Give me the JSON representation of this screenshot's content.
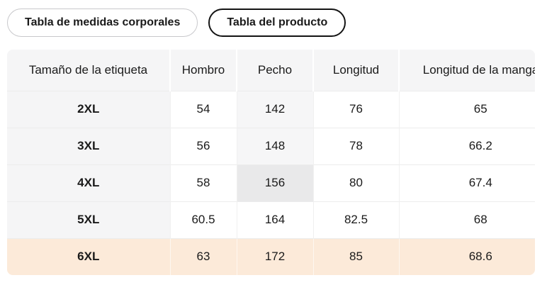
{
  "tabs": [
    {
      "label": "Tabla de medidas corporales",
      "selected": false
    },
    {
      "label": "Tabla del producto",
      "selected": true
    }
  ],
  "size_table": {
    "columns": [
      "Tamaño de la etiqueta",
      "Hombro",
      "Pecho",
      "Longitud",
      "Longitud de la manga"
    ],
    "rows": [
      {
        "size": "2XL",
        "hombro": "54",
        "pecho": "142",
        "longitud": "76",
        "longitud_manga": "65"
      },
      {
        "size": "3XL",
        "hombro": "56",
        "pecho": "148",
        "longitud": "78",
        "longitud_manga": "66.2"
      },
      {
        "size": "4XL",
        "hombro": "58",
        "pecho": "156",
        "longitud": "80",
        "longitud_manga": "67.4"
      },
      {
        "size": "5XL",
        "hombro": "60.5",
        "pecho": "164",
        "longitud": "82.5",
        "longitud_manga": "68"
      },
      {
        "size": "6XL",
        "hombro": "63",
        "pecho": "172",
        "longitud": "85",
        "longitud_manga": "68.6"
      }
    ],
    "highlights": {
      "selected_row": "6XL",
      "hovered_cell": {
        "row": "4XL",
        "column": "Pecho",
        "value": "156"
      },
      "shaded_column_cells": [
        {
          "row": "2XL",
          "column": "Pecho"
        },
        {
          "row": "3XL",
          "column": "Pecho"
        }
      ]
    }
  },
  "colors": {
    "accent_row": "#fcead9",
    "hover_bg": "#e9e9ea",
    "header_bg": "#f5f5f6",
    "stripe_bg": "#f6f6f7",
    "tab_border_selected": "#141414",
    "tab_border_unselected": "#c8c8cb",
    "text": "#1a1a1a"
  }
}
